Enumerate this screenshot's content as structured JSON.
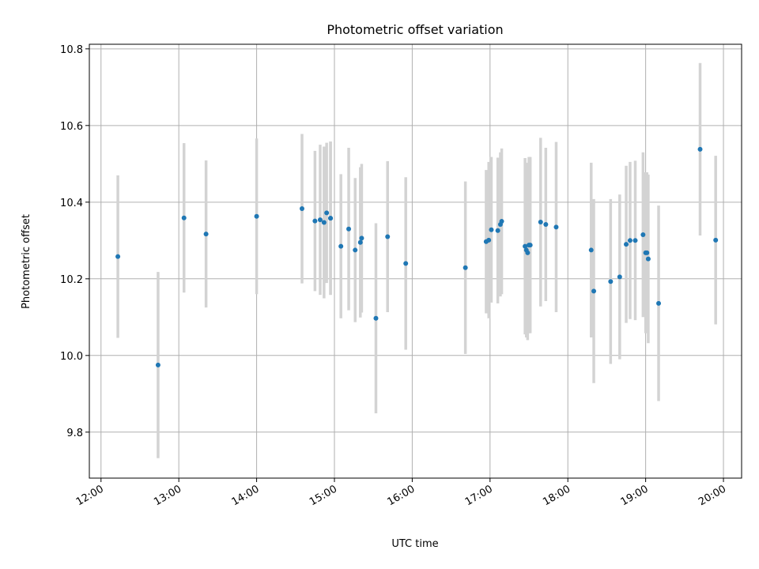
{
  "chart_data": {
    "type": "scatter",
    "title": "Photometric offset variation",
    "xlabel": "UTC time",
    "ylabel": "Photometric offset",
    "xlim": [
      "11:51",
      "20:14"
    ],
    "ylim": [
      9.68,
      10.812
    ],
    "grid": true,
    "x_ticks": [
      "12:00",
      "13:00",
      "14:00",
      "15:00",
      "16:00",
      "17:00",
      "18:00",
      "19:00",
      "20:00"
    ],
    "y_ticks": [
      "9.8",
      "10.0",
      "10.2",
      "10.4",
      "10.6",
      "10.8"
    ],
    "errorbar_color": "#d3d3d3",
    "marker_color": "#1f77b4",
    "series": [
      {
        "x": [
          "12:13",
          "12:44",
          "13:04",
          "13:21",
          "14:00",
          "14:35",
          "14:45",
          "14:49",
          "14:52",
          "14:54",
          "14:57",
          "14:57",
          "15:05",
          "15:11",
          "15:16",
          "15:20",
          "15:21",
          "15:32",
          "15:41",
          "15:55",
          "16:41",
          "16:57",
          "16:59",
          "17:01",
          "17:06",
          "17:08",
          "17:09",
          "17:27",
          "17:28",
          "17:29",
          "17:30",
          "17:31",
          "17:39",
          "17:43",
          "17:51",
          "18:18",
          "18:20",
          "18:33",
          "18:40",
          "18:45",
          "18:48",
          "18:52",
          "18:58",
          "19:00",
          "19:01",
          "19:02",
          "19:10",
          "19:42",
          "19:54"
        ],
        "y": [
          10.258,
          9.975,
          10.359,
          10.317,
          10.363,
          10.383,
          10.351,
          10.354,
          10.347,
          10.372,
          10.358,
          10.358,
          10.285,
          10.33,
          10.275,
          10.295,
          10.306,
          10.097,
          10.31,
          10.24,
          10.229,
          10.297,
          10.301,
          10.328,
          10.326,
          10.342,
          10.35,
          10.285,
          10.275,
          10.268,
          10.288,
          10.288,
          10.348,
          10.342,
          10.335,
          10.275,
          10.168,
          10.193,
          10.205,
          10.29,
          10.3,
          10.3,
          10.315,
          10.268,
          10.268,
          10.252,
          10.136,
          10.538,
          10.301
        ],
        "yerr": [
          0.212,
          0.243,
          0.195,
          0.192,
          0.203,
          0.195,
          0.183,
          0.196,
          0.198,
          0.183,
          0.2,
          0.2,
          0.188,
          0.212,
          0.188,
          0.196,
          0.194,
          0.248,
          0.197,
          0.225,
          0.225,
          0.187,
          0.204,
          0.19,
          0.19,
          0.188,
          0.19,
          0.23,
          0.228,
          0.228,
          0.23,
          0.23,
          0.22,
          0.2,
          0.222,
          0.228,
          0.24,
          0.215,
          0.215,
          0.205,
          0.205,
          0.208,
          0.215,
          0.21,
          0.21,
          0.22,
          0.255,
          0.225,
          0.22
        ]
      }
    ]
  }
}
